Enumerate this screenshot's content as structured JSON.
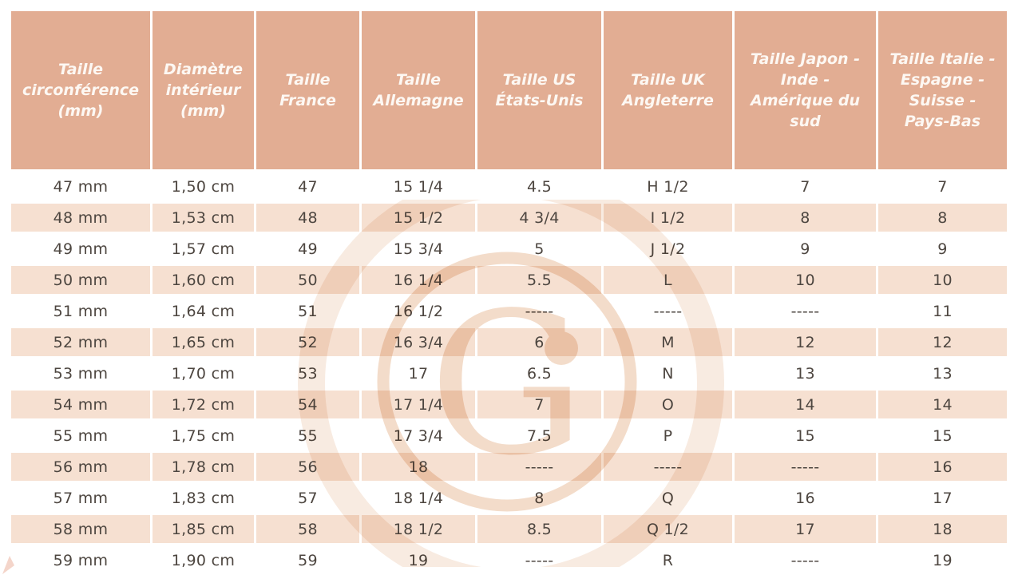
{
  "table": {
    "columns": [
      "Taille circonférence (mm)",
      "Diamètre intérieur (mm)",
      "Taille France",
      "Taille Allemagne",
      "Taille US États-Unis",
      "Taille UK Angleterre",
      "Taille Japon - Inde - Amérique du sud",
      "Taille Italie - Espagne - Suisse - Pays-Bas"
    ],
    "rows": [
      [
        "47 mm",
        "1,50 cm",
        "47",
        "15 1/4",
        "4.5",
        "H 1/2",
        "7",
        "7"
      ],
      [
        "48 mm",
        "1,53 cm",
        "48",
        "15 1/2",
        "4 3/4",
        "I 1/2",
        "8",
        "8"
      ],
      [
        "49 mm",
        "1,57 cm",
        "49",
        "15 3/4",
        "5",
        "J 1/2",
        "9",
        "9"
      ],
      [
        "50 mm",
        "1,60 cm",
        "50",
        "16 1/4",
        "5.5",
        "L",
        "10",
        "10"
      ],
      [
        "51 mm",
        "1,64 cm",
        "51",
        "16 1/2",
        "-----",
        "-----",
        "-----",
        "11"
      ],
      [
        "52 mm",
        "1,65 cm",
        "52",
        "16 3/4",
        "6",
        "M",
        "12",
        "12"
      ],
      [
        "53 mm",
        "1,70 cm",
        "53",
        "17",
        "6.5",
        "N",
        "13",
        "13"
      ],
      [
        "54 mm",
        "1,72 cm",
        "54",
        "17 1/4",
        "7",
        "O",
        "14",
        "14"
      ],
      [
        "55 mm",
        "1,75 cm",
        "55",
        "17 3/4",
        "7.5",
        "P",
        "15",
        "15"
      ],
      [
        "56 mm",
        "1,78 cm",
        "56",
        "18",
        "-----",
        "-----",
        "-----",
        "16"
      ],
      [
        "57 mm",
        "1,83 cm",
        "57",
        "18 1/4",
        "8",
        "Q",
        "16",
        "17"
      ],
      [
        "58 mm",
        "1,85 cm",
        "58",
        "18 1/2",
        "8.5",
        "Q 1/2",
        "17",
        "18"
      ],
      [
        "59 mm",
        "1,90 cm",
        "59",
        "19",
        "-----",
        "R",
        "-----",
        "19"
      ]
    ]
  },
  "watermark": {
    "letter": "G"
  },
  "colors": {
    "header_bg": "#e2ad93",
    "header_text": "#fdf8f3",
    "alt_row_bg": "#f6e0d1",
    "body_text": "#4d4640",
    "watermark": "#f3dcca"
  }
}
